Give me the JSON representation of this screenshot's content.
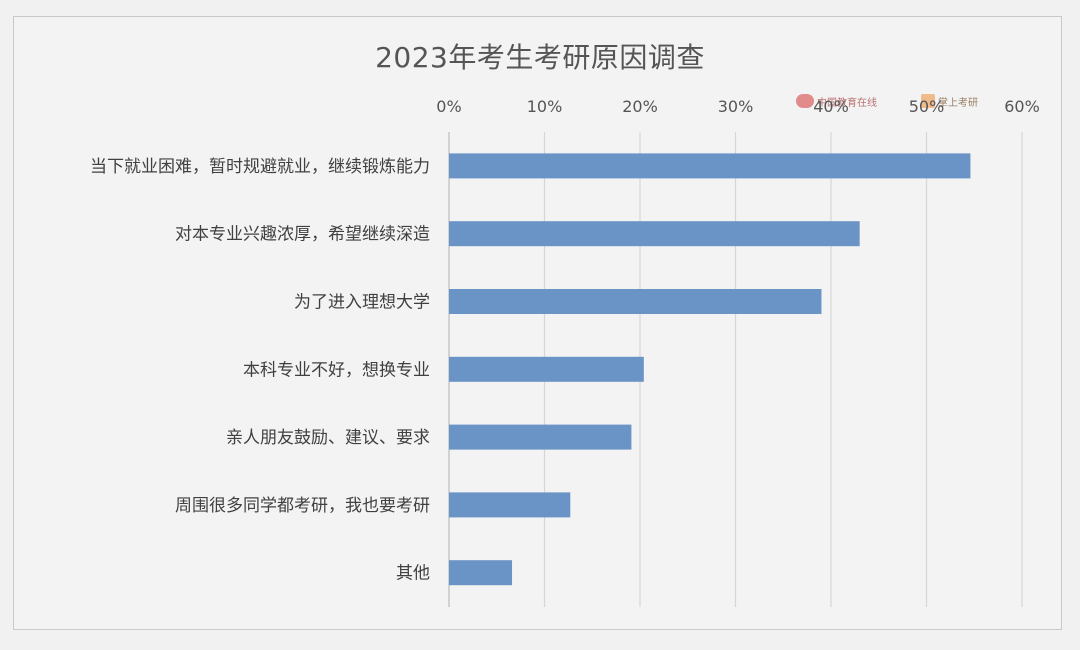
{
  "chart_data": {
    "type": "bar",
    "orientation": "horizontal",
    "title": "2023年考生考研原因调查",
    "categories": [
      "当下就业困难，暂时规避就业，继续锻炼能力",
      "对本专业兴趣浓厚，希望继续深造",
      "为了进入理想大学",
      "本科专业不好，想换专业",
      "亲人朋友鼓励、建议、要求",
      "周围很多同学都考研，我也要考研",
      "其他"
    ],
    "values": [
      54.6,
      43.0,
      39.0,
      20.4,
      19.1,
      12.7,
      6.6
    ],
    "xlim": [
      0,
      60
    ],
    "x_ticks": [
      "0%",
      "10%",
      "20%",
      "30%",
      "40%",
      "50%",
      "60%"
    ],
    "x_axis_position": "top",
    "grid": true,
    "bar_color": "#6a93c6"
  },
  "watermark": {
    "left_text": "中国教育在线",
    "right_text": "掌上考研"
  }
}
